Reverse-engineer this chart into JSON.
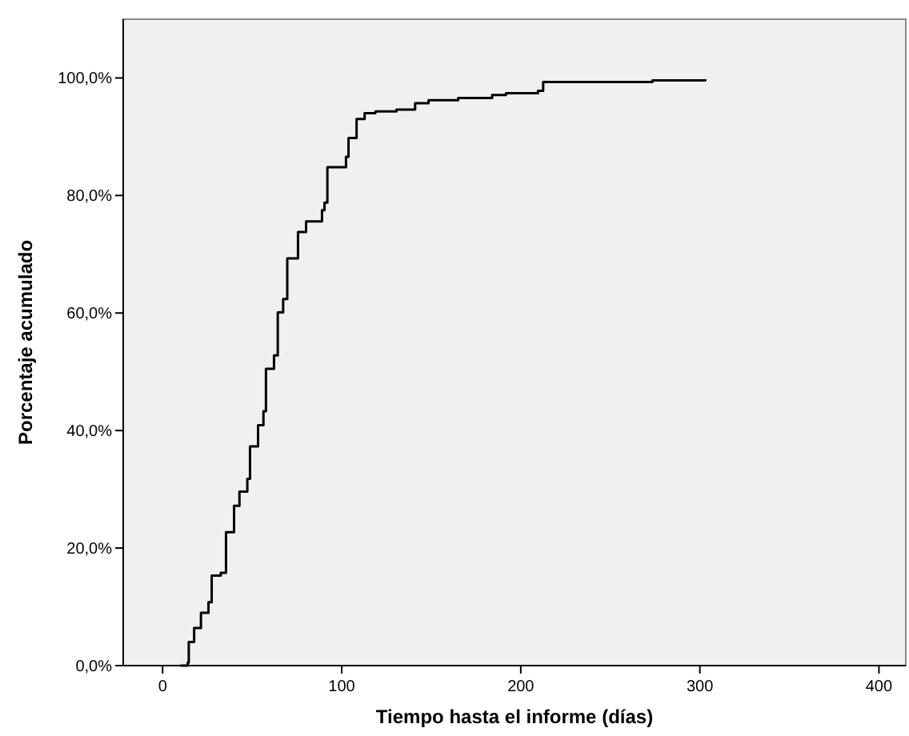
{
  "chart_data": {
    "type": "step",
    "xlabel": "Tiempo hasta el informe (días)",
    "ylabel": "Porcentaje acumulado",
    "x": [
      9.8,
      14,
      14.6,
      17.6,
      21.4,
      25.6,
      27.4,
      32.5,
      35.4,
      39.9,
      42.9,
      47.3,
      48.8,
      53.3,
      56.3,
      57.7,
      62.2,
      64.3,
      67.3,
      69.6,
      75.6,
      80.1,
      89,
      90.4,
      92,
      102.4,
      103.8,
      108.3,
      112.8,
      118.8,
      130.6,
      141,
      148.5,
      165,
      184,
      191.7,
      209.6,
      212.5,
      273.5,
      303
    ],
    "values": [
      0,
      0.5,
      4,
      6.4,
      9,
      10.8,
      15.3,
      15.8,
      22.7,
      27.2,
      29.6,
      31.8,
      37.3,
      40.9,
      43.3,
      50.5,
      52.8,
      60.1,
      62.4,
      69.3,
      73.8,
      75.6,
      77.5,
      78.8,
      84.8,
      86.6,
      89.8,
      93,
      94,
      94.3,
      94.6,
      95.7,
      96.2,
      96.6,
      97.1,
      97.4,
      97.8,
      99.3,
      99.6,
      99.8
    ],
    "color": "#000000",
    "xlim": [
      -22,
      415
    ],
    "ylim": [
      0,
      110
    ],
    "xticks": [
      0,
      100,
      200,
      300,
      400
    ],
    "yticks": [
      {
        "value": 0,
        "label": "0,0%"
      },
      {
        "value": 20,
        "label": "20,0%"
      },
      {
        "value": 40,
        "label": "40,0%"
      },
      {
        "value": 60,
        "label": "60,0%"
      },
      {
        "value": 80,
        "label": "80,0%"
      },
      {
        "value": 100,
        "label": "100,0%"
      }
    ],
    "grid": false
  }
}
